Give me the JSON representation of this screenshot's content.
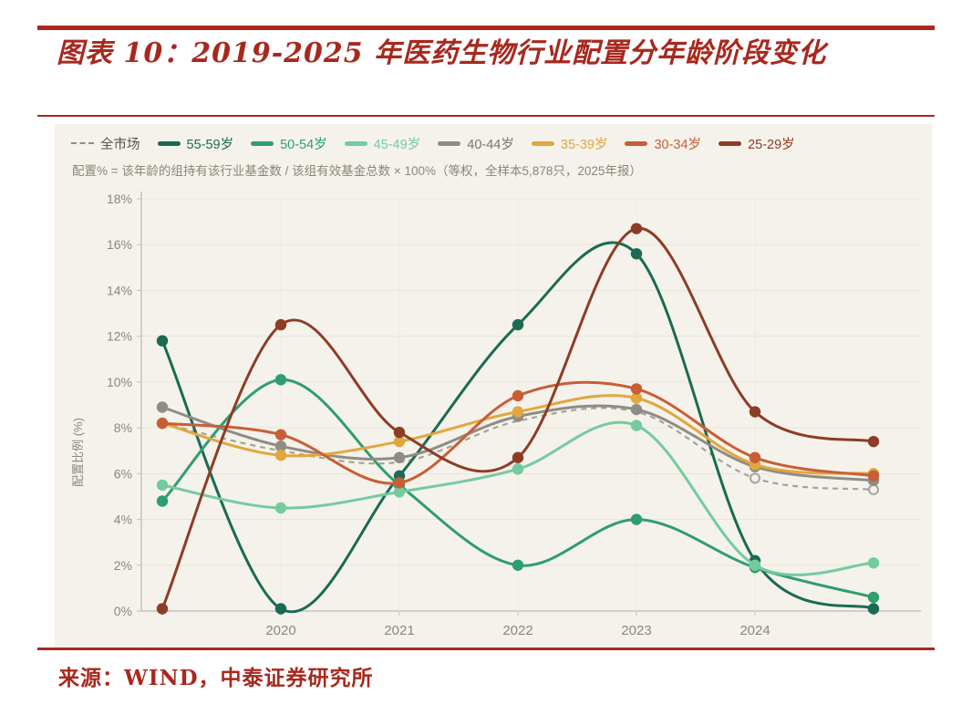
{
  "document": {
    "figure_title": "图表 10：2019-2025 年医药生物行业配置分年龄阶段变化",
    "source_line": "来源：WIND，中泰证券研究所"
  },
  "chart": {
    "note": "配置% = 该年龄的组持有该行业基金数 / 该组有效基金总数 × 100%（等权，全样本5,878只，2025年报）",
    "ylabel": "配置比例 (%)",
    "accent_color": "#a8281e",
    "panel_bg": "#f5f2eb",
    "grid_color": "#e9e5da",
    "axis_color": "#c6c1b4",
    "tick_label_color": "#8b877c"
  },
  "chart_data": {
    "type": "line",
    "x": [
      2019,
      2020,
      2021,
      2022,
      2023,
      2024,
      2025
    ],
    "x_tick_labels": [
      "2020",
      "2021",
      "2022",
      "2023",
      "2024"
    ],
    "x_ticks_shown": [
      2020,
      2021,
      2022,
      2023,
      2024
    ],
    "ylim": [
      0,
      18
    ],
    "ytick_step": 2,
    "ytick_suffix": "%",
    "grid": true,
    "legend_position": "top-left",
    "title": "图表 10：2019-2025 年医药生物行业配置分年龄阶段变化",
    "xlabel": "",
    "ylabel": "配置比例 (%)",
    "series": [
      {
        "name": "全市场",
        "color": "#a6a399",
        "label_color": "#55534b",
        "style": "dashed",
        "marker": "open-circle",
        "marker_indices": [
          5,
          6
        ],
        "values": [
          8.2,
          7.0,
          6.5,
          8.3,
          8.7,
          5.8,
          5.3
        ]
      },
      {
        "name": "55-59岁",
        "color": "#1a6a54",
        "label_color": "#1a6a54",
        "style": "solid",
        "values": [
          11.8,
          0.1,
          5.9,
          12.5,
          15.6,
          2.2,
          0.1
        ]
      },
      {
        "name": "50-54岁",
        "color": "#2f9e6e",
        "label_color": "#2f9e6e",
        "style": "solid",
        "values": [
          4.8,
          10.1,
          5.5,
          2.0,
          4.0,
          1.9,
          0.6
        ]
      },
      {
        "name": "45-49岁",
        "color": "#74cba0",
        "label_color": "#74cba0",
        "style": "solid",
        "values": [
          5.5,
          4.5,
          5.2,
          6.2,
          8.1,
          2.0,
          2.1
        ]
      },
      {
        "name": "40-44岁",
        "color": "#8e8d85",
        "label_color": "#76756d",
        "style": "solid",
        "values": [
          8.9,
          7.2,
          6.7,
          8.5,
          8.8,
          6.3,
          5.7
        ]
      },
      {
        "name": "35-39岁",
        "color": "#e1a73e",
        "label_color": "#e1a73e",
        "style": "solid",
        "values": [
          8.2,
          6.8,
          7.4,
          8.7,
          9.3,
          6.4,
          6.0
        ]
      },
      {
        "name": "30-34岁",
        "color": "#c85e36",
        "label_color": "#c85e36",
        "style": "solid",
        "values": [
          8.2,
          7.7,
          5.6,
          9.4,
          9.7,
          6.7,
          5.9
        ]
      },
      {
        "name": "25-29岁",
        "color": "#8d3c26",
        "label_color": "#8d3c26",
        "style": "solid",
        "values": [
          0.1,
          12.5,
          7.8,
          6.7,
          16.7,
          8.7,
          7.4
        ]
      }
    ]
  }
}
